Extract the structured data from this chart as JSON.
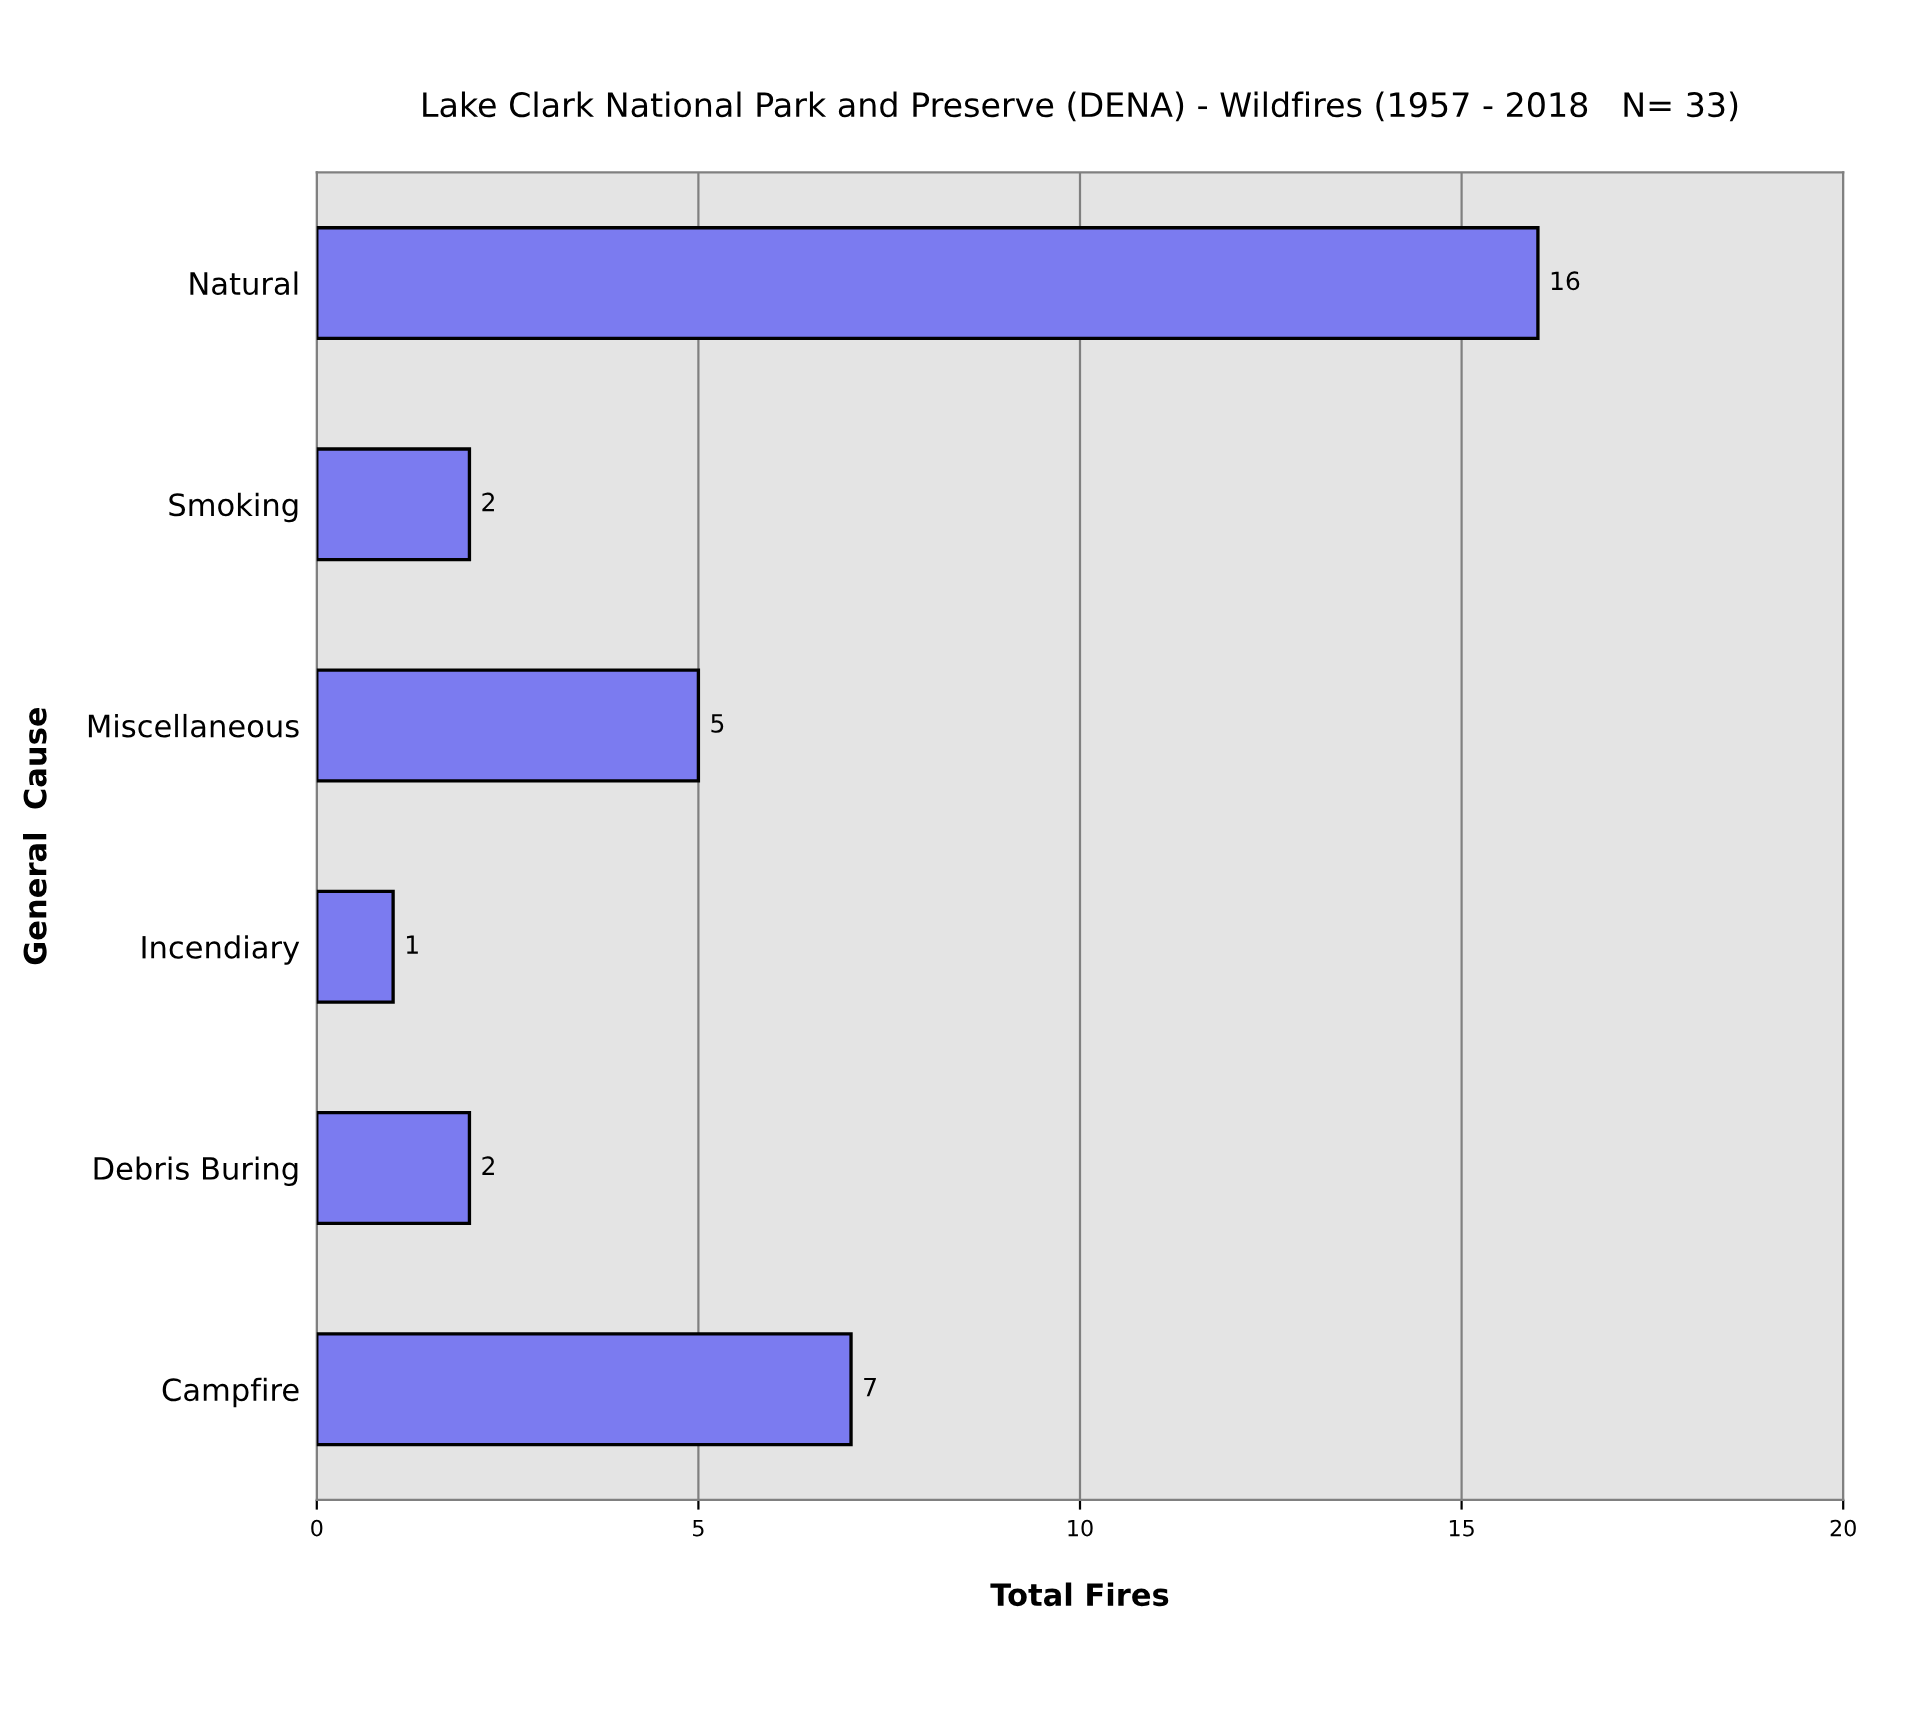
{
  "chart_data": {
    "type": "bar",
    "orientation": "horizontal",
    "title": "Lake Clark National Park and Preserve (DENA) - Wildfires (1957 - 2018   N= 33)",
    "xlabel": "Total Fires",
    "ylabel": "General  Cause",
    "categories": [
      "Natural",
      "Smoking",
      "Miscellaneous",
      "Incendiary",
      "Debris Buring",
      "Campfire"
    ],
    "values": [
      16,
      2,
      5,
      1,
      2,
      7
    ],
    "color": "#7b7bf0",
    "xlim": [
      0,
      20
    ],
    "xticks": [
      0,
      5,
      10,
      15,
      20
    ],
    "grid": "x",
    "data_labels": true,
    "legend": false
  }
}
